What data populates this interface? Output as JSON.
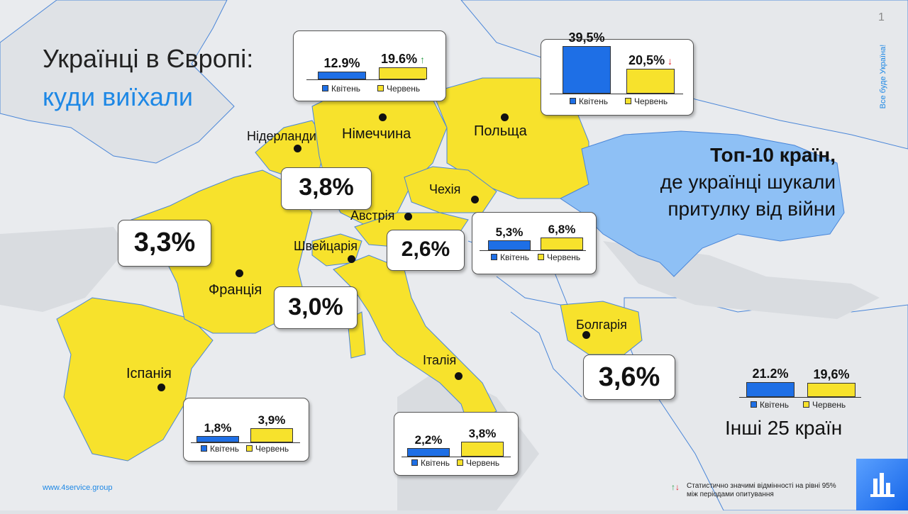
{
  "slide": {
    "page_number": "1",
    "vertical_text": "Все буде Україна!",
    "title_line1": "Українці в Європі:",
    "title_line2": "куди виїхали",
    "subtitle_bold": "Топ-10 країн,",
    "subtitle_line2": "де українці шукали",
    "subtitle_line3": "притулку від війни",
    "website": "www.4service.group",
    "footnote": "Статистично значимі відмінності на рівні 95% між періодами опитування",
    "others_label": "Інші 25 країн"
  },
  "legend": {
    "april": "Квітень",
    "june": "Червень"
  },
  "colors": {
    "april": "#1e6fe6",
    "june": "#f7e22c",
    "map_highlight": "#f7e22c",
    "ukraine": "#8ec0f5",
    "accent": "#1e88e5",
    "up": "#2e9e4a",
    "down": "#e0242b"
  },
  "countries": {
    "germany": {
      "name": "Німеччина",
      "april": "12.9%",
      "june": "19.6%",
      "april_value": 12.9,
      "june_value": 19.6,
      "change": "up"
    },
    "poland": {
      "name": "Польща",
      "april": "39,5%",
      "june": "20,5%",
      "april_value": 39.5,
      "june_value": 20.5,
      "change": "down"
    },
    "netherlands": {
      "name": "Нідерланди",
      "share": "3,8%"
    },
    "czechia": {
      "name": "Чехія",
      "april": "5,3%",
      "june": "6,8%",
      "april_value": 5.3,
      "june_value": 6.8
    },
    "austria": {
      "name": "Австрія",
      "share": "2,6%"
    },
    "switzerland": {
      "name": "Швейцарія",
      "share": "3,0%"
    },
    "france": {
      "name": "Франція",
      "share": "3,3%"
    },
    "spain": {
      "name": "Іспанія",
      "april": "1,8%",
      "june": "3,9%",
      "april_value": 1.8,
      "june_value": 3.9
    },
    "italy": {
      "name": "Італія",
      "april": "2,2%",
      "june": "3,8%",
      "april_value": 2.2,
      "june_value": 3.8
    },
    "bulgaria": {
      "name": "Болгарія",
      "share": "3,6%"
    },
    "others": {
      "april": "21.2%",
      "june": "19,6%",
      "april_value": 21.2,
      "june_value": 19.6
    }
  },
  "chart_data": [
    {
      "type": "bar",
      "title": "Німеччина",
      "categories": [
        "Квітень",
        "Червень"
      ],
      "values": [
        12.9,
        19.6
      ]
    },
    {
      "type": "bar",
      "title": "Польща",
      "categories": [
        "Квітень",
        "Червень"
      ],
      "values": [
        39.5,
        20.5
      ]
    },
    {
      "type": "bar",
      "title": "Чехія",
      "categories": [
        "Квітень",
        "Червень"
      ],
      "values": [
        5.3,
        6.8
      ]
    },
    {
      "type": "bar",
      "title": "Іспанія",
      "categories": [
        "Квітень",
        "Червень"
      ],
      "values": [
        1.8,
        3.9
      ]
    },
    {
      "type": "bar",
      "title": "Італія",
      "categories": [
        "Квітень",
        "Червень"
      ],
      "values": [
        2.2,
        3.8
      ]
    },
    {
      "type": "bar",
      "title": "Інші 25 країн",
      "categories": [
        "Квітень",
        "Червень"
      ],
      "values": [
        21.2,
        19.6
      ]
    }
  ]
}
